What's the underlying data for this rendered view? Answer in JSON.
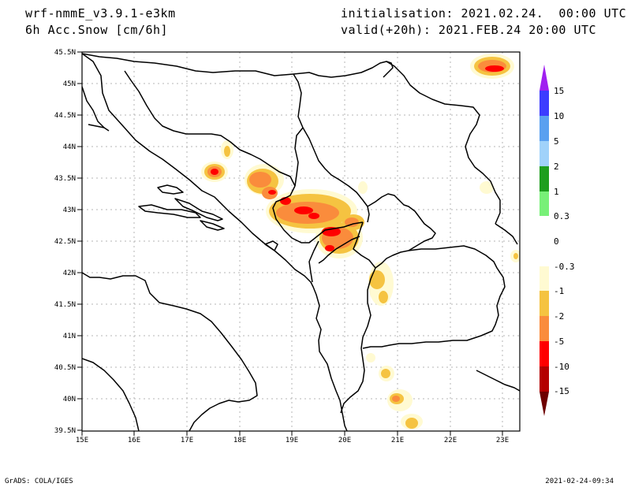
{
  "header": {
    "model": "wrf-nmmE_v3.9.1-e3km",
    "field": "6h Acc.Snow [cm/6h]",
    "init_label": "initialisation: 2021.02.24.  00:00 UTC",
    "valid_label": "valid(+20h): 2021.FEB.24 20:00 UTC"
  },
  "axes": {
    "lat_labels": [
      "45.5N",
      "45N",
      "44.5N",
      "44N",
      "43.5N",
      "43N",
      "42.5N",
      "42N",
      "41.5N",
      "41N",
      "40.5N",
      "40N",
      "39.5N"
    ],
    "lon_labels": [
      "15E",
      "16E",
      "17E",
      "18E",
      "19E",
      "20E",
      "21E",
      "22E",
      "23E"
    ],
    "lat_range": [
      39.5,
      45.5
    ],
    "lon_range": [
      15,
      23.3
    ],
    "grid": "dotted"
  },
  "colorbar": {
    "labels": [
      "15",
      "10",
      "5",
      "2",
      "1",
      "0.3",
      "0",
      "-0.3",
      "-1",
      "-2",
      "-5",
      "-10",
      "-15"
    ],
    "colors": {
      "top_arrow": "#a020f0",
      "c10_15": "#3c3cff",
      "c5_10": "#5aa0f0",
      "c2_5": "#a0d2fa",
      "c1_2": "#1e9e1e",
      "c03_1": "#78f078",
      "c0": "#ffffff",
      "cn03": "#fffad2",
      "cn1": "#f5c341",
      "cn2": "#fa8c3c",
      "cn5": "#ff0000",
      "cn10": "#b40000",
      "bottom_arrow": "#6e0000"
    }
  },
  "footer": {
    "credit": "GrADS: COLA/IGES",
    "timestamp": "2021-02-24-09:34"
  }
}
